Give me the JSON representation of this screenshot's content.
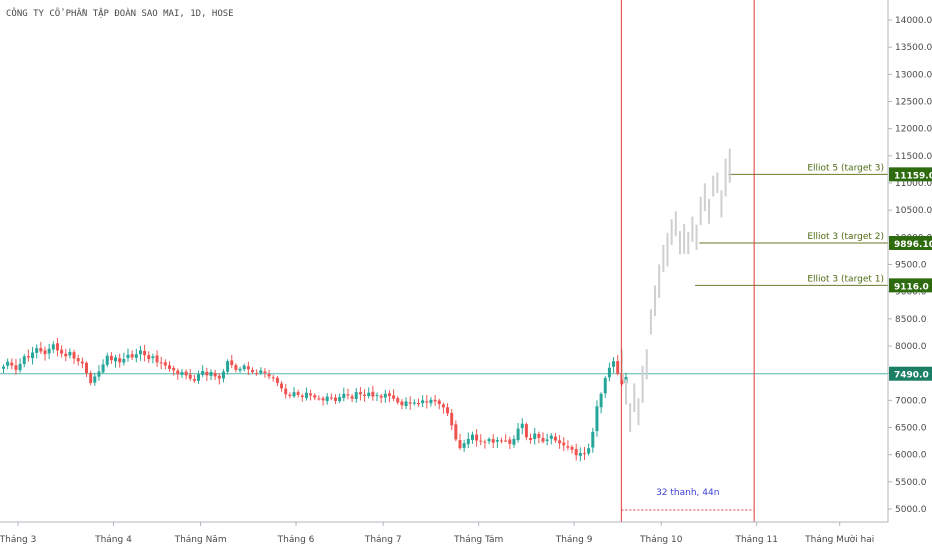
{
  "chart_data": {
    "type": "candlestick",
    "title": "CÔNG TY CỔ PHẦN TẬP ĐOÀN SAO MAI, 1D, HOSE",
    "ylim": [
      4900,
      14300
    ],
    "y_ticks": [
      5000,
      5500,
      6000,
      6500,
      7000,
      7500,
      8000,
      8500,
      9000,
      9500,
      10000,
      10500,
      11000,
      11500,
      12000,
      12500,
      13000,
      13500,
      14000
    ],
    "y_tick_labels": [
      "5000.0",
      "5500.0",
      "6000.0",
      "6500.0",
      "7000.0",
      "7500.0",
      "8000.0",
      "8500.0",
      "9000.0",
      "9500.0",
      "10000.0",
      "10500.0",
      "11000.0",
      "11500.0",
      "12000.0",
      "12500.0",
      "13000.0",
      "13500.0",
      "14000.0"
    ],
    "x_month_labels": [
      {
        "label": "Tháng 3",
        "bar": 0
      },
      {
        "label": "Tháng 4",
        "bar": 23
      },
      {
        "label": "Tháng Năm",
        "bar": 44
      },
      {
        "label": "Tháng 6",
        "bar": 67
      },
      {
        "label": "Tháng 7",
        "bar": 88
      },
      {
        "label": "Tháng Tám",
        "bar": 111
      },
      {
        "label": "Tháng 9",
        "bar": 134
      },
      {
        "label": "Tháng 10",
        "bar": 155
      },
      {
        "label": "Tháng 11",
        "bar": 178
      },
      {
        "label": "Tháng Mười hai",
        "bar": 198
      }
    ],
    "horizontal_line": {
      "value": 7490,
      "label": "7490.0",
      "color": "#26a69a"
    },
    "targets": [
      {
        "label": "Elliot 5 (target 3)",
        "value": 11159,
        "price_label": "11159.0",
        "from_bar": 175
      },
      {
        "label": "Elliot 3 (target 2)",
        "value": 9896.1,
        "price_label": "9896.10",
        "from_bar": 168
      },
      {
        "label": "Elliot 3 (target 1)",
        "value": 9116,
        "price_label": "9116.0",
        "from_bar": 167
      }
    ],
    "vertical_lines": {
      "start_bar": 149,
      "end_bar": 181,
      "color": "#e53935"
    },
    "measure_label": "32 thanh, 44n",
    "series": [
      {
        "name": "price",
        "values": [
          7620,
          7710,
          7640,
          7560,
          7670,
          7810,
          7790,
          7880,
          7960,
          7900,
          7850,
          7950,
          8030,
          7920,
          7860,
          7810,
          7890,
          7770,
          7720,
          7680,
          7500,
          7320,
          7440,
          7530,
          7660,
          7820,
          7740,
          7790,
          7700,
          7760,
          7840,
          7790,
          7850,
          7920,
          7830,
          7760,
          7810,
          7700,
          7690,
          7640,
          7580,
          7550,
          7480,
          7520,
          7460,
          7400,
          7360,
          7480,
          7540,
          7460,
          7520,
          7440,
          7400,
          7530,
          7720,
          7650,
          7560,
          7580,
          7640,
          7570,
          7520,
          7490,
          7550,
          7500,
          7440,
          7410,
          7320,
          7220,
          7110,
          7080,
          7150,
          7100,
          7060,
          7140,
          7090,
          7050,
          7030,
          7000,
          7070,
          7040,
          6990,
          7060,
          7120,
          7090,
          7030,
          7150,
          7110,
          7080,
          7140,
          7070,
          7100,
          7050,
          7120,
          7080,
          7030,
          6960,
          6910,
          6980,
          6940,
          6960,
          6930,
          7000,
          6960,
          7010,
          6980,
          6930,
          6870,
          6760,
          6540,
          6280,
          6120,
          6210,
          6290,
          6370,
          6260,
          6240,
          6230,
          6290,
          6220,
          6270,
          6250,
          6260,
          6200,
          6290,
          6480,
          6570,
          6320,
          6270,
          6390,
          6310,
          6240,
          6280,
          6350,
          6260,
          6210,
          6170,
          6130,
          6090,
          5990,
          6030,
          6010,
          6120,
          6420,
          6890,
          7120,
          7410,
          7600,
          7720,
          7490,
          7300,
          7430
        ]
      },
      {
        "name": "projection",
        "values": [
          7620,
          7200,
          6600,
          7000,
          6800,
          7300,
          7700,
          8400,
          8900,
          9200,
          9600,
          9800,
          10100,
          10300,
          9900,
          10000,
          9950,
          10200,
          10000,
          10400,
          10700,
          10500,
          10900,
          11000,
          10600,
          11100,
          11300
        ]
      }
    ],
    "grid": false
  }
}
